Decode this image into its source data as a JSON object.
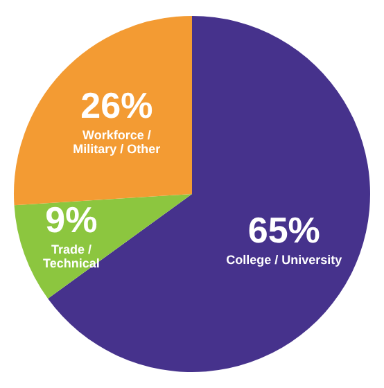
{
  "chart_data": {
    "type": "pie",
    "categories": [
      "College / University",
      "Trade / Technical",
      "Workforce / Military / Other"
    ],
    "values": [
      65,
      9,
      26
    ],
    "colors": [
      "#46328c",
      "#8cc63f",
      "#f39b33"
    ],
    "value_labels": [
      "65%",
      "9%",
      "26%"
    ],
    "legend": false
  }
}
